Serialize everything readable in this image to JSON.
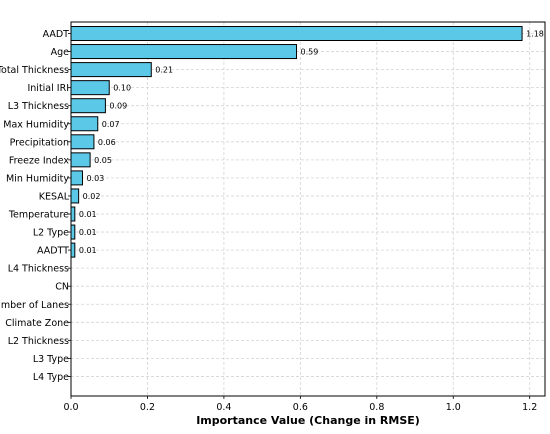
{
  "chart_data": {
    "type": "bar",
    "orientation": "horizontal",
    "title": "",
    "xlabel": "Importance Value (Change in RMSE)",
    "ylabel": "",
    "xlim": [
      0,
      1.24
    ],
    "xticks": [
      0.0,
      0.2,
      0.4,
      0.6,
      0.8,
      1.0,
      1.2
    ],
    "xtick_labels": [
      "0.0",
      "0.2",
      "0.4",
      "0.6",
      "0.8",
      "1.0",
      "1.2"
    ],
    "grid": true,
    "bar_color": "#5bc8e8",
    "edge_color": "#000000",
    "categories": [
      "AADT",
      "Age",
      "Total Thickness",
      "Initial IRI",
      "L3 Thickness",
      "Max Humidity",
      "Precipitation",
      "Freeze Index",
      "Min Humidity",
      "KESAL",
      "Temperature",
      "L2 Type",
      "AADTT",
      "L4 Thickness",
      "CN",
      "Number of Lanes",
      "Climate Zone",
      "L2 Thickness",
      "L3 Type",
      "L4 Type"
    ],
    "values": [
      1.18,
      0.59,
      0.21,
      0.1,
      0.09,
      0.07,
      0.06,
      0.05,
      0.03,
      0.02,
      0.01,
      0.01,
      0.01,
      0.0,
      0.0,
      0.0,
      0.0,
      0.0,
      0.0,
      0.0
    ],
    "value_labels": [
      "1.18",
      "0.59",
      "0.21",
      "0.10",
      "0.09",
      "0.07",
      "0.06",
      "0.05",
      "0.03",
      "0.02",
      "0.01",
      "0.01",
      "0.01",
      "",
      "",
      "",
      "",
      "",
      "",
      ""
    ]
  }
}
